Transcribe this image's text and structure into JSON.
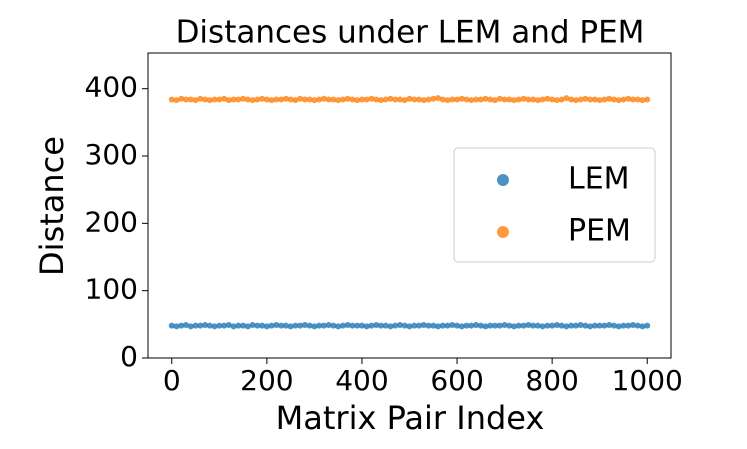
{
  "chart_data": {
    "type": "scatter",
    "title": "Distances under LEM and PEM",
    "xlabel": "Matrix Pair Index",
    "ylabel": "Distance",
    "x": [
      0,
      10,
      20,
      30,
      40,
      50,
      60,
      70,
      80,
      90,
      100,
      110,
      120,
      130,
      140,
      150,
      160,
      170,
      180,
      190,
      200,
      210,
      220,
      230,
      240,
      250,
      260,
      270,
      280,
      290,
      300,
      310,
      320,
      330,
      340,
      350,
      360,
      370,
      380,
      390,
      400,
      410,
      420,
      430,
      440,
      450,
      460,
      470,
      480,
      490,
      500,
      510,
      520,
      530,
      540,
      550,
      560,
      570,
      580,
      590,
      600,
      610,
      620,
      630,
      640,
      650,
      660,
      670,
      680,
      690,
      700,
      710,
      720,
      730,
      740,
      750,
      760,
      770,
      780,
      790,
      800,
      810,
      820,
      830,
      840,
      850,
      860,
      870,
      880,
      890,
      900,
      910,
      920,
      930,
      940,
      950,
      960,
      970,
      980,
      990,
      1000
    ],
    "series": [
      {
        "name": "LEM",
        "color": "#1f77b4",
        "values": [
          48,
          47,
          48,
          49,
          47,
          48,
          48,
          49,
          48,
          47,
          48,
          48,
          49,
          47,
          48,
          48,
          47,
          49,
          48,
          48,
          47,
          48,
          49,
          48,
          48,
          47,
          48,
          48,
          49,
          48,
          47,
          48,
          48,
          49,
          48,
          47,
          48,
          49,
          48,
          48,
          48,
          47,
          48,
          49,
          48,
          48,
          47,
          48,
          49,
          48,
          47,
          48,
          48,
          49,
          48,
          48,
          47,
          48,
          48,
          49,
          48,
          47,
          48,
          48,
          49,
          48,
          47,
          48,
          48,
          48,
          49,
          48,
          47,
          48,
          48,
          49,
          48,
          48,
          47,
          48,
          48,
          49,
          48,
          47,
          48,
          48,
          49,
          48,
          47,
          48,
          48,
          48,
          49,
          48,
          47,
          48,
          48,
          49,
          48,
          47,
          48
        ]
      },
      {
        "name": "PEM",
        "color": "#ff7f0e",
        "values": [
          384,
          383,
          385,
          384,
          384,
          383,
          385,
          384,
          383,
          384,
          384,
          385,
          383,
          384,
          384,
          385,
          384,
          383,
          384,
          385,
          384,
          383,
          384,
          384,
          385,
          384,
          383,
          385,
          384,
          384,
          383,
          384,
          385,
          384,
          384,
          383,
          384,
          385,
          384,
          383,
          384,
          384,
          385,
          384,
          383,
          384,
          385,
          384,
          384,
          383,
          385,
          384,
          384,
          383,
          384,
          385,
          386,
          384,
          383,
          384,
          384,
          385,
          384,
          383,
          384,
          384,
          385,
          384,
          383,
          385,
          384,
          384,
          383,
          384,
          385,
          384,
          384,
          383,
          384,
          385,
          384,
          383,
          384,
          386,
          384,
          383,
          384,
          385,
          384,
          384,
          383,
          384,
          385,
          384,
          383,
          384,
          385,
          384,
          384,
          383,
          384
        ]
      }
    ],
    "xlim": [
      -50,
      1050
    ],
    "xticks": [
      0,
      200,
      400,
      600,
      800,
      1000
    ],
    "ylim": [
      0,
      453
    ],
    "yticks": [
      0,
      100,
      200,
      300,
      400
    ],
    "legend": "right"
  }
}
